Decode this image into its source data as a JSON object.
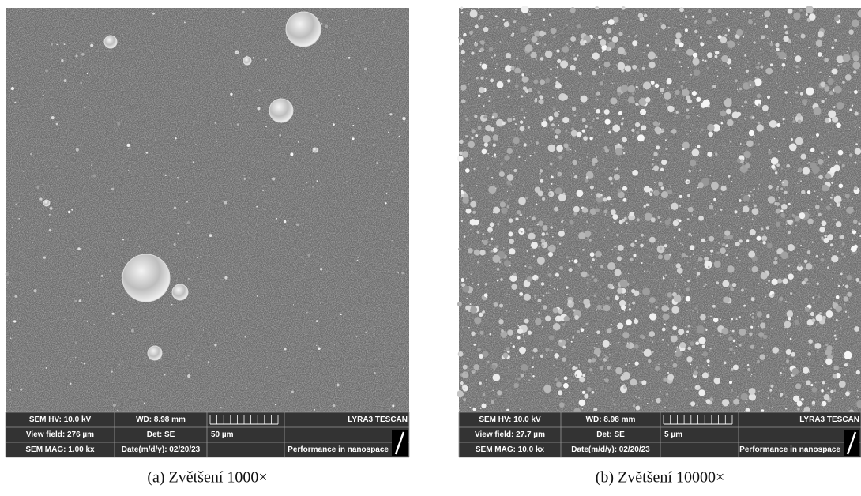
{
  "panels": [
    {
      "hv": "SEM HV: 10.0 kV",
      "wd": "WD: 8.98 mm",
      "view_field": "View field: 276 µm",
      "det": "Det: SE",
      "mag": "SEM MAG: 1.00 kx",
      "date": "Date(m/d/y): 02/20/23",
      "scale": "50 µm",
      "brand": "LYRA3 TESCAN",
      "tagline": "Performance in nanospace",
      "caption": "(a) Zvětšení 1000×"
    },
    {
      "hv": "SEM HV: 10.0 kV",
      "wd": "WD: 8.98 mm",
      "view_field": "View field: 27.7 µm",
      "det": "Det: SE",
      "mag": "SEM MAG: 10.0 kx",
      "date": "Date(m/d/y): 02/20/23",
      "scale": "5 µm",
      "brand": "LYRA3 TESCAN",
      "tagline": "Performance in nanospace",
      "caption": "(b) Zvětšení 10000×"
    }
  ]
}
